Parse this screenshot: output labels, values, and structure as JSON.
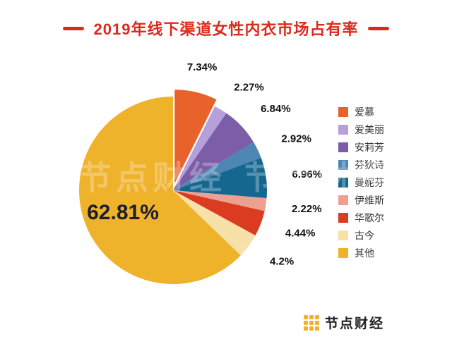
{
  "title": "2019年线下渠道女性内衣市场占有率",
  "colors": {
    "accent_red": "#DC2A1E",
    "logo_yellow": "#F0B22A",
    "label_dark": "#111111"
  },
  "watermark": {
    "text": "节点财经"
  },
  "logo": {
    "text": "节点财经"
  },
  "chart_data": {
    "type": "pie",
    "title": "2019年线下渠道女性内衣市场占有率",
    "start_angle_deg": 0,
    "direction": "clockwise",
    "legend_position": "right",
    "exploded_index": 0,
    "slices": [
      {
        "label": "爱慕",
        "value": 7.34,
        "display": "7.34%",
        "color": "#E8632C"
      },
      {
        "label": "爱美丽",
        "value": 2.27,
        "display": "2.27%",
        "color": "#B6A0DB"
      },
      {
        "label": "安莉芳",
        "value": 6.84,
        "display": "6.84%",
        "color": "#7B5EA7"
      },
      {
        "label": "芬狄诗",
        "value": 2.92,
        "display": "2.92%",
        "color": "#4E86B3"
      },
      {
        "label": "曼妮芬",
        "value": 6.96,
        "display": "6.96%",
        "color": "#16678F"
      },
      {
        "label": "伊维斯",
        "value": 2.22,
        "display": "2.22%",
        "color": "#ECA190"
      },
      {
        "label": "华歌尔",
        "value": 4.44,
        "display": "4.44%",
        "color": "#DB3B21"
      },
      {
        "label": "古今",
        "value": 4.2,
        "display": "4.2%",
        "color": "#F7E1A8"
      },
      {
        "label": "其他",
        "value": 62.81,
        "display": "62.81%",
        "color": "#EFB22B"
      }
    ]
  }
}
